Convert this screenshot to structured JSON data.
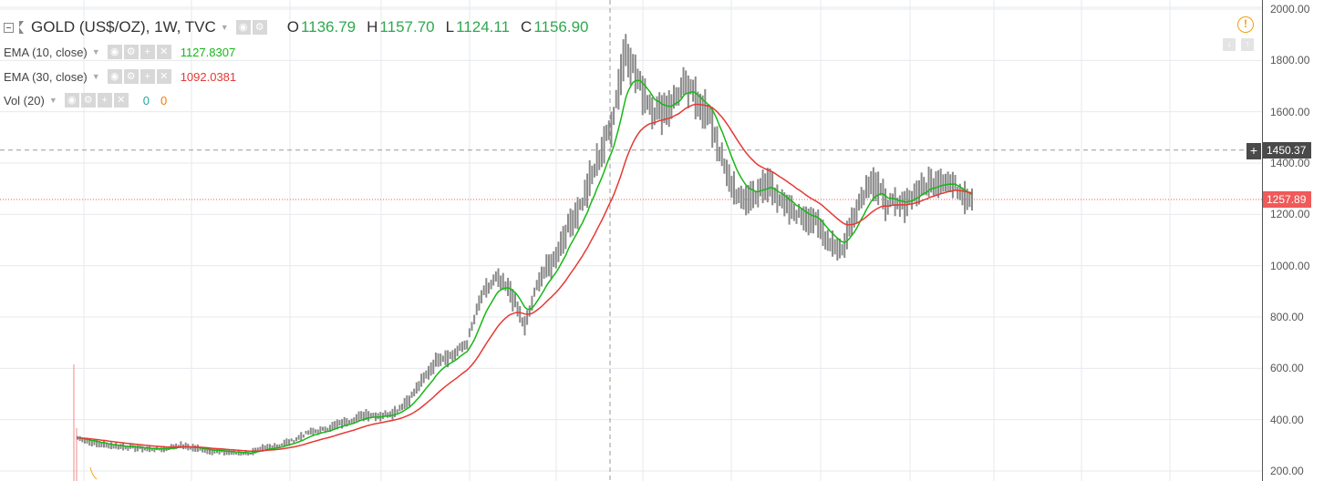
{
  "symbol": {
    "title": "GOLD (US$/OZ), 1W, TVC",
    "open_label": "O",
    "open": "1136.79",
    "high_label": "H",
    "high": "1157.70",
    "low_label": "L",
    "low": "1124.11",
    "close_label": "C",
    "close": "1156.90"
  },
  "indicators": [
    {
      "name": "EMA (10, close)",
      "value": "1127.8307",
      "color": "#15b815"
    },
    {
      "name": "EMA (30, close)",
      "value": "1092.0381",
      "color": "#e53935"
    },
    {
      "name": "Vol (20)",
      "value1": "0",
      "value2": "0"
    }
  ],
  "price_axis": {
    "ticks": [
      "2000.00",
      "1800.00",
      "1600.00",
      "1400.00",
      "1200.00",
      "1000.00",
      "800.00",
      "600.00",
      "400.00",
      "200.00"
    ],
    "crosshair_price": "1450.37",
    "last_price": "1257.89"
  },
  "colors": {
    "ema10": "#15b815",
    "ema30": "#e53935",
    "candle": "#8a8a8a",
    "last_price": "#f05a5a",
    "crosshair": "#4a4a4a"
  },
  "icons": {
    "alert": "alert-clock-icon",
    "scroll_down": "arrow-down-icon",
    "scroll_up": "arrow-up-icon"
  },
  "chart_data": {
    "type": "line",
    "ylim": [
      200,
      2000
    ],
    "grid": true,
    "series": [
      {
        "values": [
          329,
          310,
          300,
          295,
          290,
          285,
          285,
          300,
          290,
          280,
          275,
          270,
          270,
          290,
          300,
          320,
          350,
          360,
          380,
          400,
          420,
          415,
          430,
          480,
          560,
          640,
          650,
          700,
          880,
          950,
          900,
          760,
          950,
          1020,
          1150,
          1250,
          1400,
          1550,
          1850,
          1700,
          1600,
          1620,
          1700,
          1650,
          1550,
          1350,
          1250,
          1280,
          1320,
          1230,
          1200,
          1180,
          1100,
          1060,
          1230,
          1340,
          1250,
          1230,
          1280,
          1320,
          1340,
          1300,
          1258
        ]
      }
    ]
  }
}
